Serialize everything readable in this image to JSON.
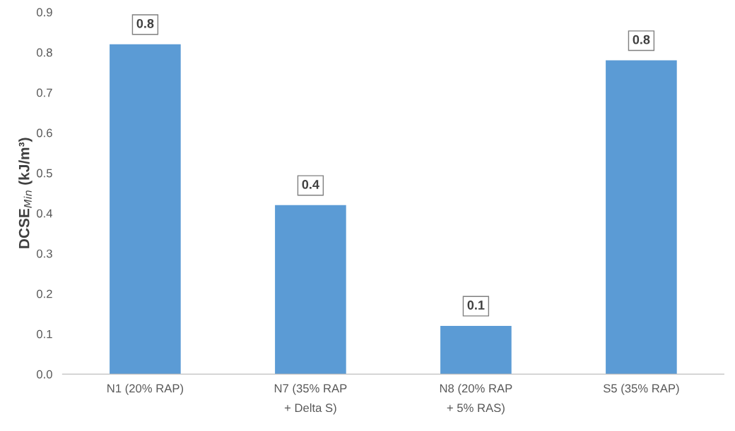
{
  "chart_data": {
    "type": "bar",
    "ylabel": "DCSE$_{Min}$ (kJ/m³)",
    "categories": [
      "N1 (20% RAP)",
      "N7 (35% RAP\n+ Delta S)",
      "N8 (20% RAP\n+ 5% RAS)",
      "S5 (35% RAP)"
    ],
    "values": [
      0.82,
      0.42,
      0.12,
      0.78
    ],
    "value_labels": [
      "0.8",
      "0.4",
      "0.1",
      "0.8"
    ],
    "color": "#5b9bd5",
    "ylim": [
      0,
      0.9
    ],
    "yticks": [
      {
        "value": 0,
        "label": "0.0"
      },
      {
        "value": 0.1,
        "label": "0.1"
      },
      {
        "value": 0.2,
        "label": "0.2"
      },
      {
        "value": 0.3,
        "label": "0.3"
      },
      {
        "value": 0.4,
        "label": "0.4"
      },
      {
        "value": 0.5,
        "label": "0.5"
      },
      {
        "value": 0.6,
        "label": "0.6"
      },
      {
        "value": 0.7,
        "label": "0.7"
      },
      {
        "value": 0.8,
        "label": "0.8"
      },
      {
        "value": 0.9,
        "label": "0.9"
      }
    ],
    "grid": false
  }
}
